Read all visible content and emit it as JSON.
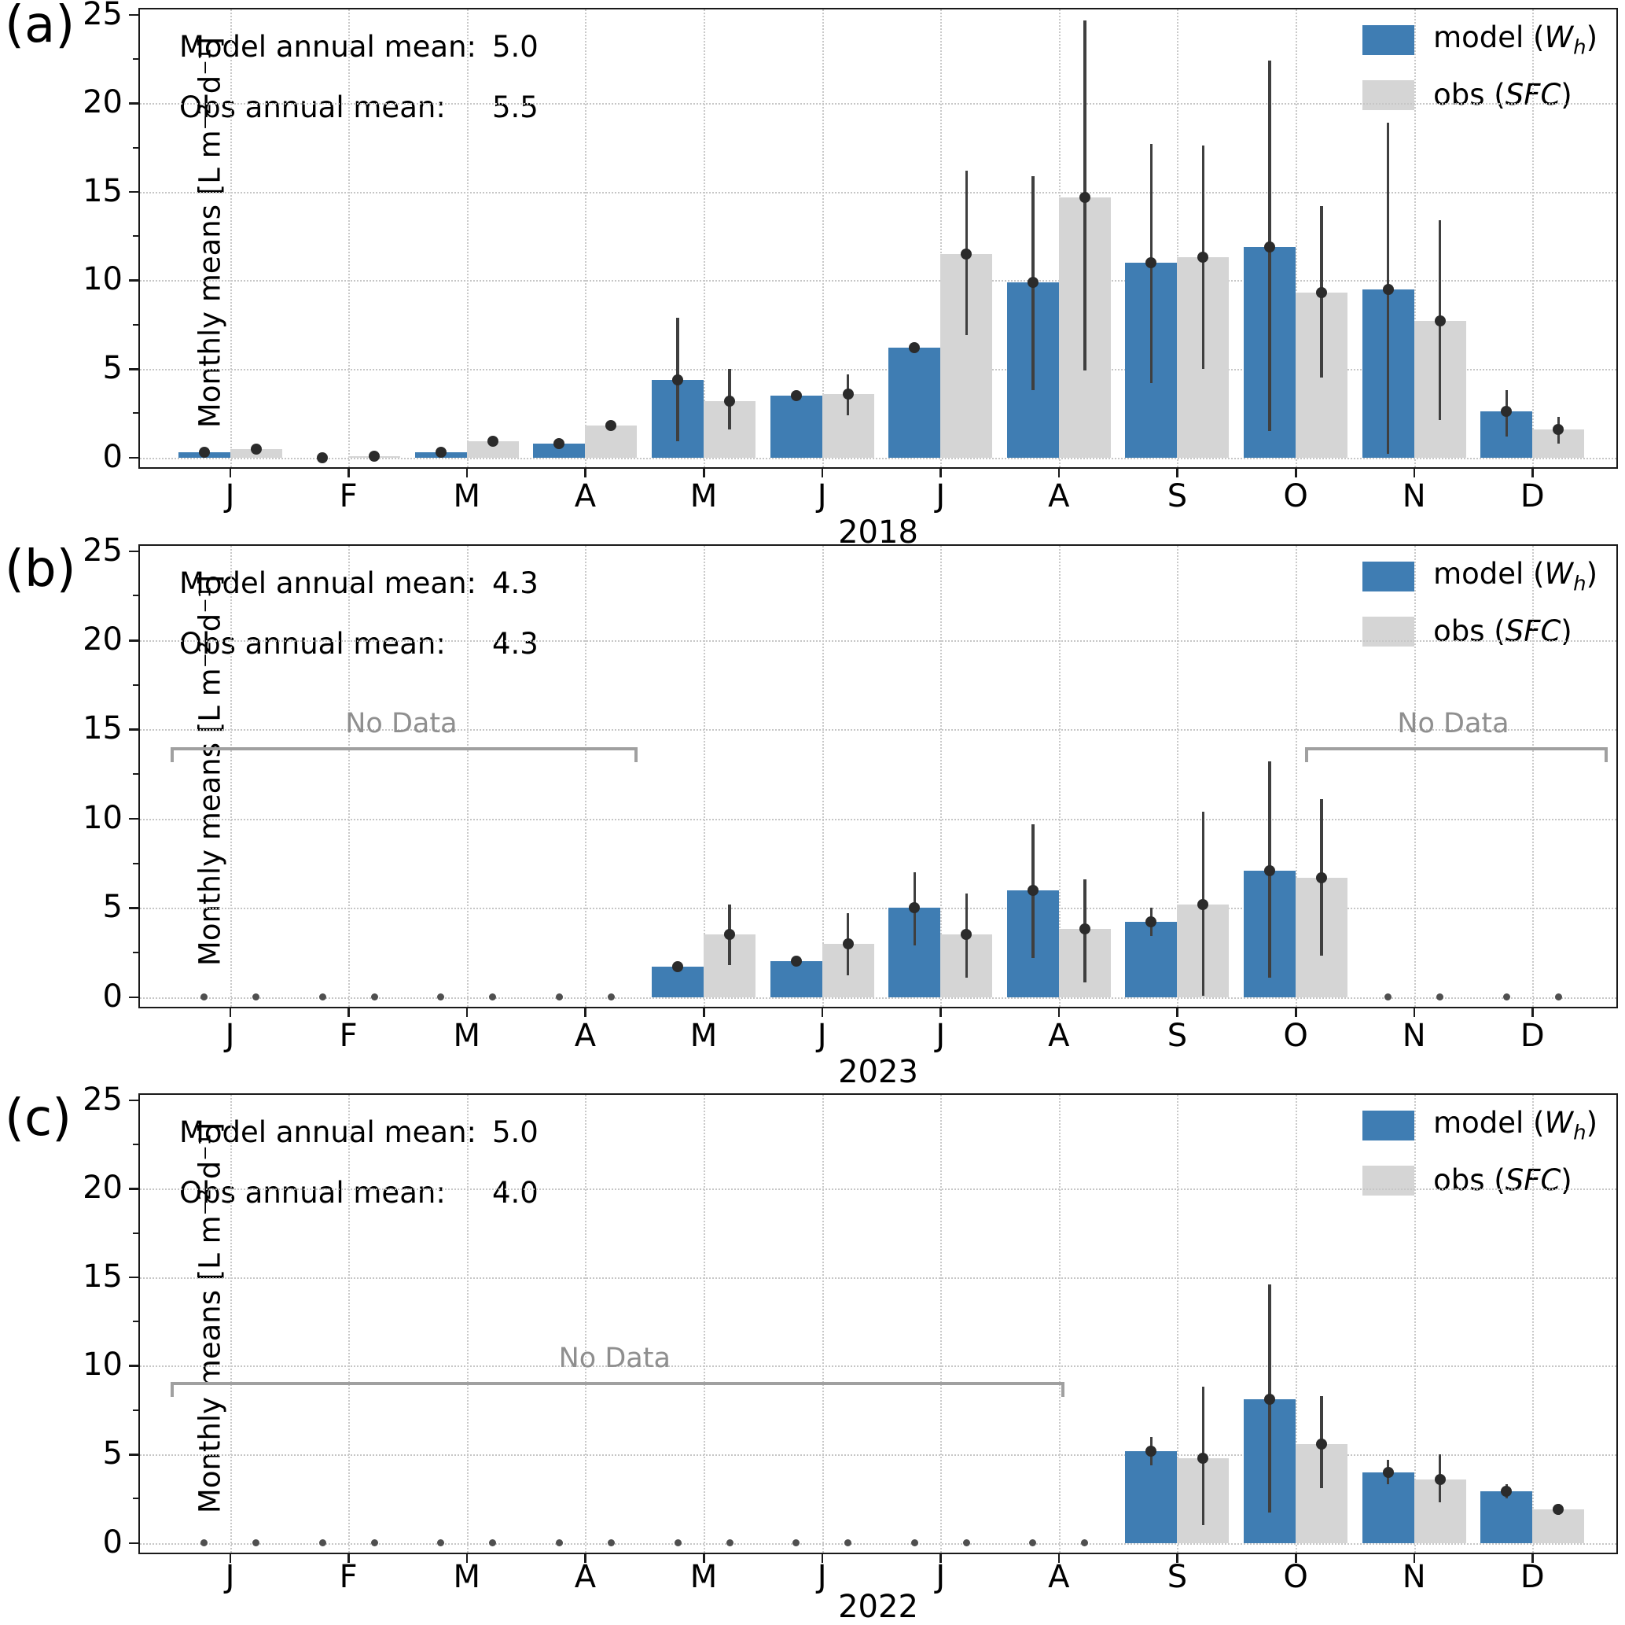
{
  "figure": {
    "ylabel": "Monthly means [L m⁻² d⁻¹]",
    "legend": {
      "model_pre": "model (",
      "model_symbol": "W",
      "model_subscript": "h",
      "model_post": ")",
      "obs_pre": "obs (",
      "obs_symbol": "SFC",
      "obs_post": ")"
    },
    "colors": {
      "model": "#3f7db3",
      "obs": "#d5d5d5",
      "error": "#3f3f3f",
      "grid": "#c9c9c9",
      "no_data": "#8f8f8f"
    }
  },
  "chart_data": [
    {
      "type": "bar",
      "panel_letter": "(a)",
      "year": "2018",
      "model_annual_mean_label": "Model annual mean:",
      "model_annual_mean": "5.0",
      "obs_annual_mean_label": "Obs annual mean:",
      "obs_annual_mean": "5.5",
      "months": [
        "J",
        "F",
        "M",
        "A",
        "M",
        "J",
        "J",
        "A",
        "S",
        "O",
        "N",
        "D"
      ],
      "ylim": [
        0,
        25
      ],
      "yticks": [
        0,
        5,
        10,
        15,
        20,
        25
      ],
      "series": [
        {
          "name": "model",
          "values": [
            0.3,
            0.0,
            0.3,
            0.8,
            4.4,
            3.5,
            6.2,
            9.9,
            11.0,
            11.9,
            9.5,
            2.6
          ],
          "err_low": [
            0.3,
            0.0,
            0.3,
            0.8,
            0.9,
            3.5,
            6.2,
            3.8,
            4.2,
            1.5,
            0.2,
            1.2
          ],
          "err_high": [
            0.3,
            0.0,
            0.3,
            0.8,
            7.9,
            3.5,
            6.2,
            15.9,
            17.7,
            22.4,
            18.9,
            3.8
          ]
        },
        {
          "name": "obs",
          "values": [
            0.45,
            0.05,
            0.9,
            1.8,
            3.2,
            3.6,
            11.5,
            14.7,
            11.3,
            9.3,
            7.7,
            1.6
          ],
          "err_low": [
            0.45,
            0.05,
            0.9,
            1.7,
            1.6,
            2.4,
            6.9,
            4.9,
            5.0,
            4.5,
            2.1,
            0.8
          ],
          "err_high": [
            0.45,
            0.05,
            0.9,
            1.9,
            5.0,
            4.7,
            16.2,
            24.7,
            17.6,
            14.2,
            13.4,
            2.3
          ]
        }
      ],
      "no_data": []
    },
    {
      "type": "bar",
      "panel_letter": "(b)",
      "year": "2023",
      "model_annual_mean_label": "Model annual mean:",
      "model_annual_mean": "4.3",
      "obs_annual_mean_label": "Obs annual mean:",
      "obs_annual_mean": "4.3",
      "months": [
        "J",
        "F",
        "M",
        "A",
        "M",
        "J",
        "J",
        "A",
        "S",
        "O",
        "N",
        "D"
      ],
      "ylim": [
        0,
        25
      ],
      "yticks": [
        0,
        5,
        10,
        15,
        20,
        25
      ],
      "series": [
        {
          "name": "model",
          "values": [
            null,
            null,
            null,
            null,
            1.7,
            2.0,
            5.0,
            6.0,
            4.2,
            7.1,
            null,
            null
          ],
          "err_low": [
            null,
            null,
            null,
            null,
            1.7,
            2.0,
            2.9,
            2.2,
            3.4,
            1.1,
            null,
            null
          ],
          "err_high": [
            null,
            null,
            null,
            null,
            1.7,
            2.0,
            7.0,
            9.7,
            5.0,
            13.2,
            null,
            null
          ]
        },
        {
          "name": "obs",
          "values": [
            null,
            null,
            null,
            null,
            3.5,
            3.0,
            3.5,
            3.8,
            5.2,
            6.7,
            null,
            null
          ],
          "err_low": [
            null,
            null,
            null,
            null,
            1.8,
            1.2,
            1.1,
            0.8,
            0.05,
            2.3,
            null,
            null
          ],
          "err_high": [
            null,
            null,
            null,
            null,
            5.2,
            4.7,
            5.8,
            6.6,
            10.4,
            11.1,
            null,
            null
          ]
        }
      ],
      "no_data": [
        {
          "label": "No Data",
          "from": 0.021,
          "to": 0.333,
          "y": 14.0
        },
        {
          "label": "No Data",
          "from": 0.789,
          "to": 0.99,
          "y": 14.0
        }
      ]
    },
    {
      "type": "bar",
      "panel_letter": "(c)",
      "year": "2022",
      "model_annual_mean_label": "Model annual mean:",
      "model_annual_mean": "5.0",
      "obs_annual_mean_label": "Obs annual mean:",
      "obs_annual_mean": "4.0",
      "months": [
        "J",
        "F",
        "M",
        "A",
        "M",
        "J",
        "J",
        "A",
        "S",
        "O",
        "N",
        "D"
      ],
      "ylim": [
        0,
        25
      ],
      "yticks": [
        0,
        5,
        10,
        15,
        20,
        25
      ],
      "series": [
        {
          "name": "model",
          "values": [
            null,
            null,
            null,
            null,
            null,
            null,
            null,
            null,
            5.2,
            8.1,
            4.0,
            2.9
          ],
          "err_low": [
            null,
            null,
            null,
            null,
            null,
            null,
            null,
            null,
            4.4,
            1.7,
            3.3,
            2.5
          ],
          "err_high": [
            null,
            null,
            null,
            null,
            null,
            null,
            null,
            null,
            6.0,
            14.6,
            4.7,
            3.3
          ]
        },
        {
          "name": "obs",
          "values": [
            null,
            null,
            null,
            null,
            null,
            null,
            null,
            null,
            4.8,
            5.6,
            3.6,
            1.9
          ],
          "err_low": [
            null,
            null,
            null,
            null,
            null,
            null,
            null,
            null,
            1.0,
            3.1,
            2.3,
            1.6
          ],
          "err_high": [
            null,
            null,
            null,
            null,
            null,
            null,
            null,
            null,
            8.8,
            8.3,
            5.0,
            2.2
          ]
        }
      ],
      "no_data": [
        {
          "label": "No Data",
          "from": 0.021,
          "to": 0.622,
          "y": 9.1
        }
      ]
    }
  ]
}
